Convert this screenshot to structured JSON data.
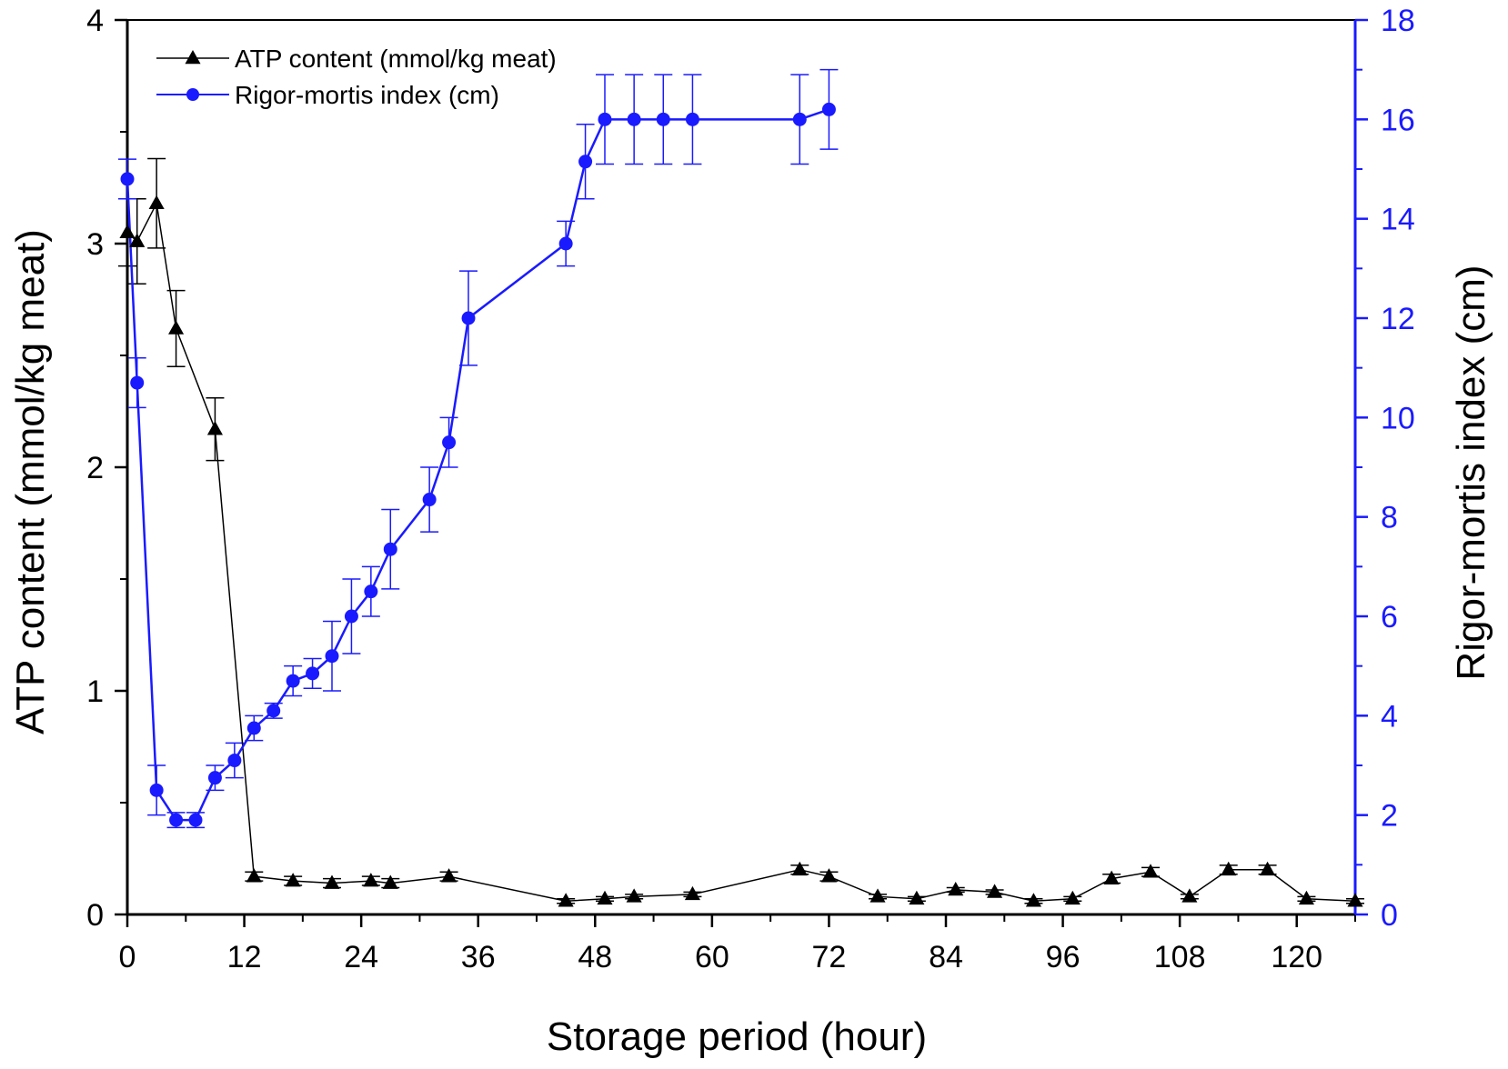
{
  "colors": {
    "atp": "#000000",
    "rigor": "#1a1aff",
    "axis": "#000000"
  },
  "legend": {
    "placement": "top-left",
    "items": [
      {
        "label": "ATP content (mmol/kg meat)",
        "marker": "triangle",
        "color": "#000000"
      },
      {
        "label": "Rigor-mortis index (cm)",
        "marker": "circle",
        "color": "#1a1aff"
      }
    ]
  },
  "chart_data": {
    "type": "line",
    "xlabel": "Storage period (hour)",
    "ylabel": "ATP content (mmol/kg meat)",
    "y2label": "Rigor-mortis index (cm)",
    "xlim": [
      0,
      126
    ],
    "ylim": [
      0,
      4
    ],
    "y2lim": [
      0,
      18
    ],
    "xticks": [
      "0",
      "12",
      "24",
      "36",
      "48",
      "60",
      "72",
      "84",
      "96",
      "108",
      "120"
    ],
    "yticks": [
      "0",
      "1",
      "2",
      "3",
      "4"
    ],
    "y2ticks": [
      "0",
      "2",
      "4",
      "6",
      "8",
      "10",
      "12",
      "14",
      "16",
      "18"
    ],
    "grid": false,
    "series": [
      {
        "name": "ATP content (mmol/kg meat)",
        "axis": "left",
        "marker": "triangle",
        "x": [
          0,
          1,
          3,
          5,
          9,
          13,
          17,
          21,
          25,
          27,
          33,
          45,
          49,
          52,
          58,
          69,
          72,
          77,
          81,
          85,
          89,
          93,
          97,
          101,
          105,
          109,
          113,
          117,
          121,
          126
        ],
        "y": [
          3.05,
          3.01,
          3.18,
          2.62,
          2.17,
          0.17,
          0.15,
          0.14,
          0.15,
          0.14,
          0.17,
          0.06,
          0.07,
          0.08,
          0.09,
          0.2,
          0.17,
          0.08,
          0.07,
          0.11,
          0.1,
          0.06,
          0.07,
          0.16,
          0.19,
          0.08,
          0.2,
          0.2,
          0.07,
          0.06
        ],
        "err": [
          0.15,
          0.19,
          0.2,
          0.17,
          0.14,
          0.02,
          0.02,
          0.02,
          0.02,
          0.02,
          0.02,
          0.01,
          0.01,
          0.01,
          0.01,
          0.02,
          0.02,
          0.01,
          0.01,
          0.01,
          0.01,
          0.01,
          0.01,
          0.02,
          0.02,
          0.01,
          0.02,
          0.02,
          0.01,
          0.01
        ]
      },
      {
        "name": "Rigor-mortis index (cm)",
        "axis": "right",
        "marker": "circle",
        "x": [
          0,
          1,
          3,
          5,
          7,
          9,
          11,
          13,
          15,
          17,
          19,
          21,
          23,
          25,
          27,
          31,
          33,
          35,
          45,
          47,
          49,
          52,
          55,
          58,
          69,
          72
        ],
        "y": [
          14.8,
          10.7,
          2.5,
          1.9,
          1.9,
          2.75,
          3.1,
          3.75,
          4.1,
          4.7,
          4.85,
          5.2,
          6.0,
          6.5,
          7.35,
          8.35,
          9.5,
          12.0,
          13.5,
          15.15,
          16.0,
          16.0,
          16.0,
          16.0,
          16.0,
          16.2
        ],
        "err": [
          0.4,
          0.5,
          0.5,
          0.15,
          0.15,
          0.25,
          0.35,
          0.25,
          0.15,
          0.3,
          0.3,
          0.7,
          0.75,
          0.5,
          0.8,
          0.65,
          0.5,
          0.95,
          0.45,
          0.75,
          0.9,
          0.9,
          0.9,
          0.9,
          0.9,
          0.8
        ]
      }
    ]
  }
}
